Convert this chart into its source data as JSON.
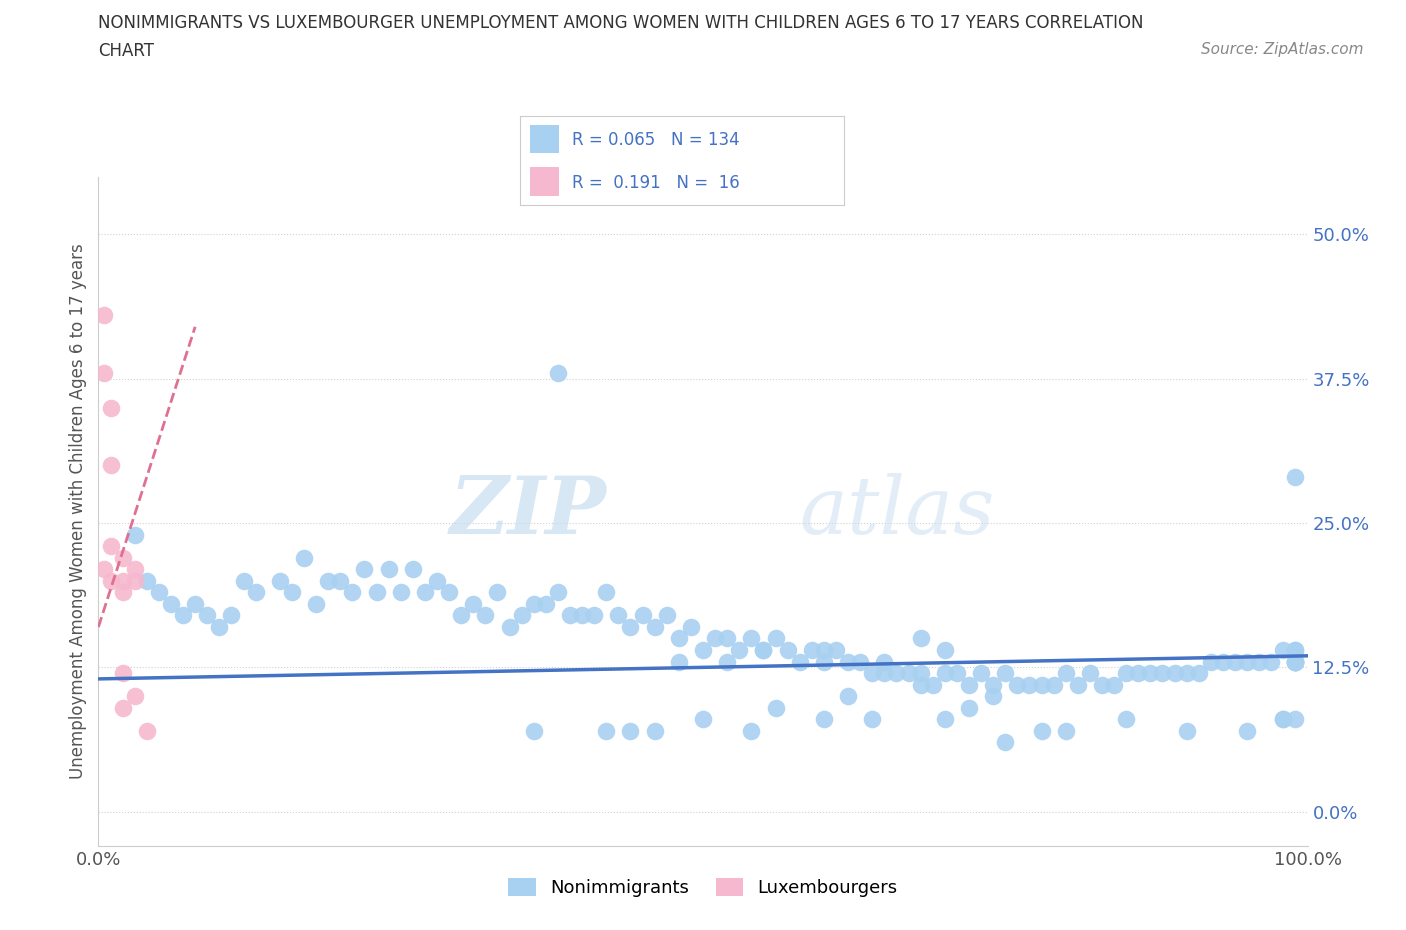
{
  "title_line1": "NONIMMIGRANTS VS LUXEMBOURGER UNEMPLOYMENT AMONG WOMEN WITH CHILDREN AGES 6 TO 17 YEARS CORRELATION",
  "title_line2": "CHART",
  "source_text": "Source: ZipAtlas.com",
  "ylabel": "Unemployment Among Women with Children Ages 6 to 17 years",
  "xlim": [
    0.0,
    100.0
  ],
  "ylim": [
    -0.03,
    0.55
  ],
  "ytick_labels": [
    "0.0%",
    "12.5%",
    "25.0%",
    "37.5%",
    "50.0%"
  ],
  "ytick_vals": [
    0.0,
    0.125,
    0.25,
    0.375,
    0.5
  ],
  "xtick_vals": [
    0,
    10,
    20,
    30,
    40,
    50,
    60,
    70,
    80,
    90,
    100
  ],
  "legend_R_nonimm": "0.065",
  "legend_N_nonimm": "134",
  "legend_R_lux": "0.191",
  "legend_N_lux": "16",
  "nonimm_color": "#a8d0f0",
  "lux_color": "#f5b8ce",
  "trendline_nonimm_color": "#4472c4",
  "trendline_lux_color": "#e07090",
  "watermark_zip": "ZIP",
  "watermark_atlas": "atlas",
  "nonimm_scatter_x": [
    3,
    4,
    5,
    6,
    7,
    8,
    9,
    10,
    11,
    12,
    13,
    15,
    16,
    17,
    18,
    19,
    20,
    21,
    22,
    23,
    24,
    25,
    26,
    27,
    28,
    29,
    30,
    31,
    32,
    33,
    34,
    35,
    36,
    37,
    38,
    39,
    40,
    41,
    42,
    43,
    44,
    45,
    46,
    47,
    48,
    49,
    50,
    51,
    52,
    53,
    54,
    55,
    56,
    57,
    58,
    59,
    60,
    61,
    62,
    63,
    64,
    65,
    66,
    67,
    68,
    69,
    70,
    71,
    72,
    73,
    74,
    75,
    76,
    77,
    78,
    79,
    80,
    81,
    82,
    83,
    84,
    85,
    86,
    87,
    88,
    89,
    90,
    91,
    92,
    93,
    94,
    95,
    96,
    97,
    98,
    99,
    99,
    99,
    99,
    99,
    99,
    99,
    99,
    38,
    48,
    52,
    55,
    60,
    65,
    68,
    70,
    75,
    78,
    80,
    85,
    90,
    95,
    98,
    98,
    99,
    36,
    42,
    44,
    46,
    50,
    54,
    56,
    60,
    62,
    64,
    68,
    70,
    72,
    74
  ],
  "nonimm_scatter_y": [
    0.24,
    0.2,
    0.19,
    0.18,
    0.17,
    0.18,
    0.17,
    0.16,
    0.17,
    0.2,
    0.19,
    0.2,
    0.19,
    0.22,
    0.18,
    0.2,
    0.2,
    0.19,
    0.21,
    0.19,
    0.21,
    0.19,
    0.21,
    0.19,
    0.2,
    0.19,
    0.17,
    0.18,
    0.17,
    0.19,
    0.16,
    0.17,
    0.18,
    0.18,
    0.19,
    0.17,
    0.17,
    0.17,
    0.19,
    0.17,
    0.16,
    0.17,
    0.16,
    0.17,
    0.15,
    0.16,
    0.14,
    0.15,
    0.15,
    0.14,
    0.15,
    0.14,
    0.15,
    0.14,
    0.13,
    0.14,
    0.13,
    0.14,
    0.13,
    0.13,
    0.12,
    0.12,
    0.12,
    0.12,
    0.12,
    0.11,
    0.12,
    0.12,
    0.11,
    0.12,
    0.11,
    0.12,
    0.11,
    0.11,
    0.11,
    0.11,
    0.12,
    0.11,
    0.12,
    0.11,
    0.11,
    0.12,
    0.12,
    0.12,
    0.12,
    0.12,
    0.12,
    0.12,
    0.13,
    0.13,
    0.13,
    0.13,
    0.13,
    0.13,
    0.14,
    0.14,
    0.13,
    0.14,
    0.13,
    0.29,
    0.13,
    0.13,
    0.13,
    0.38,
    0.13,
    0.13,
    0.14,
    0.14,
    0.13,
    0.15,
    0.14,
    0.06,
    0.07,
    0.07,
    0.08,
    0.07,
    0.07,
    0.08,
    0.08,
    0.08,
    0.07,
    0.07,
    0.07,
    0.07,
    0.08,
    0.07,
    0.09,
    0.08,
    0.1,
    0.08,
    0.11,
    0.08,
    0.09,
    0.1
  ],
  "lux_scatter_x": [
    0.5,
    0.5,
    0.5,
    1,
    1,
    1,
    1,
    2,
    2,
    2,
    2,
    2,
    3,
    3,
    3,
    4
  ],
  "lux_scatter_y": [
    0.43,
    0.38,
    0.21,
    0.35,
    0.3,
    0.23,
    0.2,
    0.22,
    0.2,
    0.19,
    0.12,
    0.09,
    0.21,
    0.2,
    0.1,
    0.07
  ],
  "trendline_nonimm_x0": 0,
  "trendline_nonimm_y0": 0.115,
  "trendline_nonimm_x1": 100,
  "trendline_nonimm_y1": 0.135,
  "trendline_lux_x0": 0,
  "trendline_lux_y0": 0.16,
  "trendline_lux_x1": 8,
  "trendline_lux_y1": 0.42
}
